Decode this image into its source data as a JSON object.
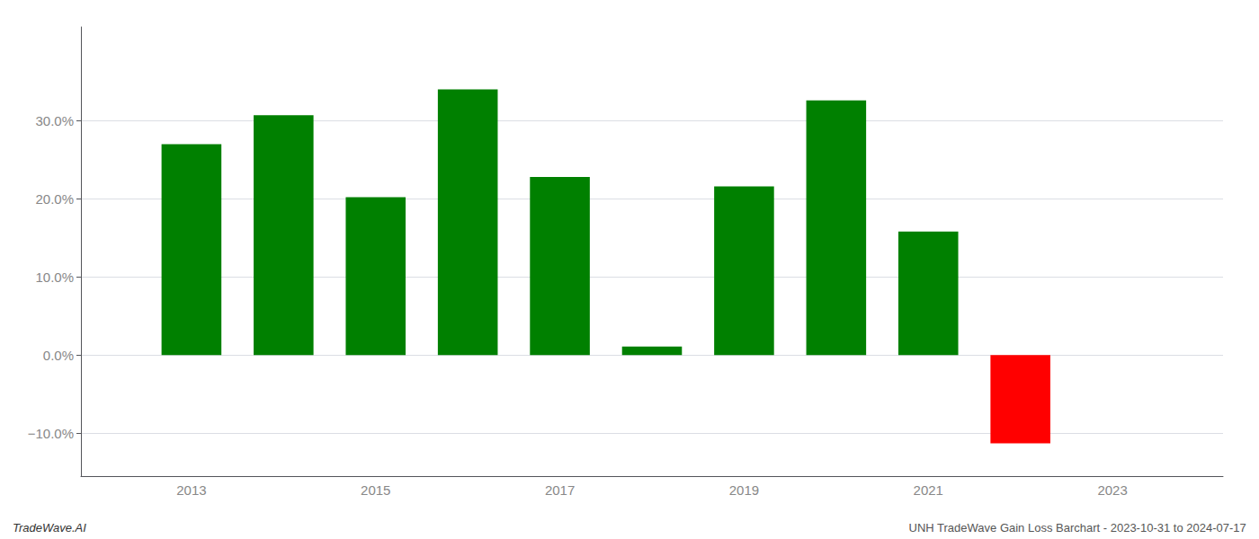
{
  "chart_data": {
    "type": "bar",
    "x": [
      2013,
      2014,
      2015,
      2016,
      2017,
      2018,
      2019,
      2020,
      2021,
      2022
    ],
    "values": [
      0.27,
      0.307,
      0.202,
      0.34,
      0.228,
      0.011,
      0.216,
      0.326,
      0.158,
      -0.113
    ],
    "colors": [
      "#008000",
      "#008000",
      "#008000",
      "#008000",
      "#008000",
      "#008000",
      "#008000",
      "#008000",
      "#008000",
      "#ff0000"
    ],
    "xlim": [
      2011.8,
      2024.2
    ],
    "xticks": [
      2013,
      2015,
      2017,
      2019,
      2021,
      2023
    ],
    "ylim": [
      -0.155,
      0.42
    ],
    "yticks": [
      {
        "value": -0.1,
        "label": "−10.0%"
      },
      {
        "value": 0.0,
        "label": "0.0%"
      },
      {
        "value": 0.1,
        "label": "10.0%"
      },
      {
        "value": 0.2,
        "label": "20.0%"
      },
      {
        "value": 0.3,
        "label": "30.0%"
      }
    ],
    "grid": true,
    "annotations": [
      "TradeWave.AI",
      "UNH TradeWave Gain Loss Barchart - 2023-10-31 to 2024-07-17"
    ]
  }
}
